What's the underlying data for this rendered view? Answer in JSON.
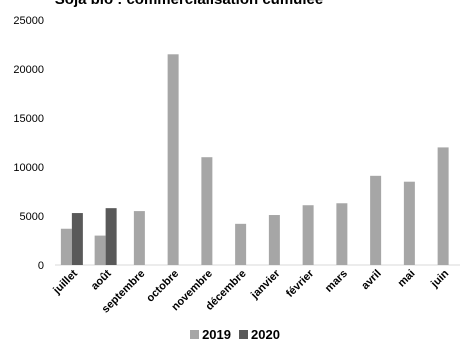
{
  "chart_data": {
    "type": "bar",
    "title": "Soja bio : commercialisation  cumulée",
    "xlabel": "",
    "ylabel": "",
    "ylim": [
      0,
      25000
    ],
    "yticks": [
      0,
      5000,
      10000,
      15000,
      20000,
      25000
    ],
    "grid": false,
    "legend_position": "bottom",
    "categories": [
      "juillet",
      "août",
      "septembre",
      "octobre",
      "novembre",
      "décembre",
      "janvier",
      "février",
      "mars",
      "avril",
      "mai",
      "juin"
    ],
    "series": [
      {
        "name": "2019",
        "color": "#a6a6a6",
        "values": [
          3700,
          3000,
          5500,
          21500,
          11000,
          4200,
          5100,
          6100,
          6300,
          9100,
          8500,
          12000
        ]
      },
      {
        "name": "2020",
        "color": "#595959",
        "values": [
          5300,
          5800,
          null,
          null,
          null,
          null,
          null,
          null,
          null,
          null,
          null,
          null
        ]
      }
    ]
  }
}
